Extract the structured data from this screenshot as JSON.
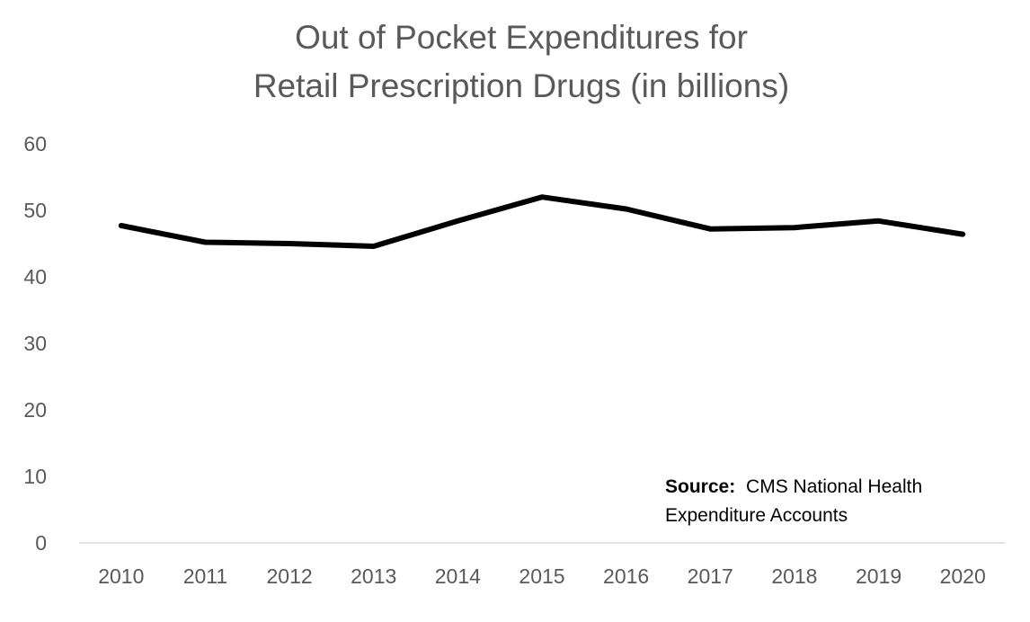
{
  "chart_data": {
    "type": "line",
    "title_lines": [
      "Out of Pocket Expenditures for",
      "Retail Prescription Drugs (in billions)"
    ],
    "categories": [
      "2010",
      "2011",
      "2012",
      "2013",
      "2014",
      "2015",
      "2016",
      "2017",
      "2018",
      "2019",
      "2020"
    ],
    "series": [
      {
        "values": [
          47.7,
          45.2,
          45.0,
          44.6,
          48.4,
          52.0,
          50.2,
          47.2,
          47.4,
          48.4,
          46.4
        ]
      }
    ],
    "ylim": [
      0,
      60
    ],
    "yticks": [
      "0",
      "10",
      "20",
      "30",
      "40",
      "50",
      "60"
    ],
    "grid": false,
    "line_color": "#000000",
    "source_label": "Source:",
    "source_text_lines": [
      "CMS National Health",
      "Expenditure Accounts"
    ]
  }
}
